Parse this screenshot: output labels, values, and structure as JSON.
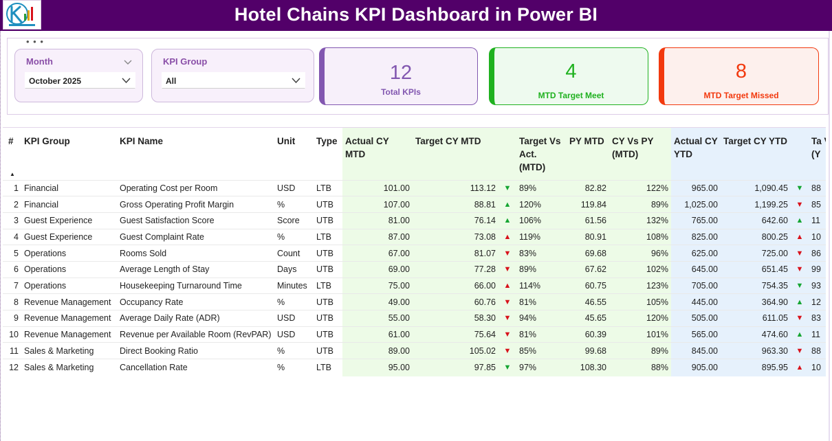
{
  "header": {
    "title": "Hotel Chains KPI Dashboard in Power BI"
  },
  "filters": {
    "month": {
      "label": "Month",
      "value": "October 2025"
    },
    "kpi_group": {
      "label": "KPI Group",
      "value": "All"
    }
  },
  "cards": {
    "total": {
      "value": "12",
      "label": "Total KPIs"
    },
    "met": {
      "value": "4",
      "label": "MTD Target Meet"
    },
    "missed": {
      "value": "8",
      "label": "MTD Target Missed"
    }
  },
  "table": {
    "columns": [
      "#",
      "KPI Group",
      "KPI Name",
      "Unit",
      "Type",
      "Actual CY MTD",
      "Target CY MTD",
      "",
      "Target Vs Act. (MTD)",
      "PY MTD",
      "CY Vs PY (MTD)",
      "Actual CY YTD",
      "Target CY YTD",
      "",
      "Ta Vs (Y"
    ],
    "rows": [
      {
        "n": "1",
        "group": "Financial",
        "name": "Operating Cost per Room",
        "unit": "USD",
        "type": "LTB",
        "act_mtd": "101.00",
        "tgt_mtd": "113.12",
        "mtd_icon": "▼",
        "mtd_dir": "up",
        "tva_mtd": "89%",
        "py_mtd": "82.82",
        "cy_py": "122%",
        "act_ytd": "965.00",
        "tgt_ytd": "1,090.45",
        "ytd_icon": "▼",
        "ytd_dir": "up",
        "tva_ytd": "88"
      },
      {
        "n": "2",
        "group": "Financial",
        "name": "Gross Operating Profit Margin",
        "unit": "%",
        "type": "UTB",
        "act_mtd": "107.00",
        "tgt_mtd": "88.81",
        "mtd_icon": "▲",
        "mtd_dir": "up",
        "tva_mtd": "120%",
        "py_mtd": "119.84",
        "cy_py": "89%",
        "act_ytd": "1,025.00",
        "tgt_ytd": "1,199.25",
        "ytd_icon": "▼",
        "ytd_dir": "down",
        "tva_ytd": "85"
      },
      {
        "n": "3",
        "group": "Guest Experience",
        "name": "Guest Satisfaction Score",
        "unit": "Score",
        "type": "UTB",
        "act_mtd": "81.00",
        "tgt_mtd": "76.14",
        "mtd_icon": "▲",
        "mtd_dir": "up",
        "tva_mtd": "106%",
        "py_mtd": "61.56",
        "cy_py": "132%",
        "act_ytd": "765.00",
        "tgt_ytd": "642.60",
        "ytd_icon": "▲",
        "ytd_dir": "up",
        "tva_ytd": "11"
      },
      {
        "n": "4",
        "group": "Guest Experience",
        "name": "Guest Complaint Rate",
        "unit": "%",
        "type": "LTB",
        "act_mtd": "87.00",
        "tgt_mtd": "73.08",
        "mtd_icon": "▲",
        "mtd_dir": "down",
        "tva_mtd": "119%",
        "py_mtd": "80.91",
        "cy_py": "108%",
        "act_ytd": "825.00",
        "tgt_ytd": "800.25",
        "ytd_icon": "▲",
        "ytd_dir": "down",
        "tva_ytd": "10"
      },
      {
        "n": "5",
        "group": "Operations",
        "name": "Rooms Sold",
        "unit": "Count",
        "type": "UTB",
        "act_mtd": "67.00",
        "tgt_mtd": "81.07",
        "mtd_icon": "▼",
        "mtd_dir": "down",
        "tva_mtd": "83%",
        "py_mtd": "69.68",
        "cy_py": "96%",
        "act_ytd": "625.00",
        "tgt_ytd": "725.00",
        "ytd_icon": "▼",
        "ytd_dir": "down",
        "tva_ytd": "86"
      },
      {
        "n": "6",
        "group": "Operations",
        "name": "Average Length of Stay",
        "unit": "Days",
        "type": "UTB",
        "act_mtd": "69.00",
        "tgt_mtd": "77.28",
        "mtd_icon": "▼",
        "mtd_dir": "down",
        "tva_mtd": "89%",
        "py_mtd": "67.62",
        "cy_py": "102%",
        "act_ytd": "645.00",
        "tgt_ytd": "651.45",
        "ytd_icon": "▼",
        "ytd_dir": "down",
        "tva_ytd": "99"
      },
      {
        "n": "7",
        "group": "Operations",
        "name": "Housekeeping Turnaround Time",
        "unit": "Minutes",
        "type": "LTB",
        "act_mtd": "75.00",
        "tgt_mtd": "66.00",
        "mtd_icon": "▲",
        "mtd_dir": "down",
        "tva_mtd": "114%",
        "py_mtd": "60.75",
        "cy_py": "123%",
        "act_ytd": "705.00",
        "tgt_ytd": "754.35",
        "ytd_icon": "▼",
        "ytd_dir": "up",
        "tva_ytd": "93"
      },
      {
        "n": "8",
        "group": "Revenue Management",
        "name": "Occupancy Rate",
        "unit": "%",
        "type": "UTB",
        "act_mtd": "49.00",
        "tgt_mtd": "60.76",
        "mtd_icon": "▼",
        "mtd_dir": "down",
        "tva_mtd": "81%",
        "py_mtd": "46.55",
        "cy_py": "105%",
        "act_ytd": "445.00",
        "tgt_ytd": "364.90",
        "ytd_icon": "▲",
        "ytd_dir": "up",
        "tva_ytd": "12"
      },
      {
        "n": "9",
        "group": "Revenue Management",
        "name": "Average Daily Rate (ADR)",
        "unit": "USD",
        "type": "UTB",
        "act_mtd": "55.00",
        "tgt_mtd": "58.30",
        "mtd_icon": "▼",
        "mtd_dir": "down",
        "tva_mtd": "94%",
        "py_mtd": "45.65",
        "cy_py": "120%",
        "act_ytd": "505.00",
        "tgt_ytd": "611.05",
        "ytd_icon": "▼",
        "ytd_dir": "down",
        "tva_ytd": "83"
      },
      {
        "n": "10",
        "group": "Revenue Management",
        "name": "Revenue per Available Room (RevPAR)",
        "unit": "USD",
        "type": "UTB",
        "act_mtd": "61.00",
        "tgt_mtd": "75.64",
        "mtd_icon": "▼",
        "mtd_dir": "down",
        "tva_mtd": "81%",
        "py_mtd": "60.39",
        "cy_py": "101%",
        "act_ytd": "565.00",
        "tgt_ytd": "474.60",
        "ytd_icon": "▲",
        "ytd_dir": "up",
        "tva_ytd": "11"
      },
      {
        "n": "11",
        "group": "Sales & Marketing",
        "name": "Direct Booking Ratio",
        "unit": "%",
        "type": "UTB",
        "act_mtd": "89.00",
        "tgt_mtd": "105.02",
        "mtd_icon": "▼",
        "mtd_dir": "down",
        "tva_mtd": "85%",
        "py_mtd": "99.68",
        "cy_py": "89%",
        "act_ytd": "845.00",
        "tgt_ytd": "963.30",
        "ytd_icon": "▼",
        "ytd_dir": "down",
        "tva_ytd": "88"
      },
      {
        "n": "12",
        "group": "Sales & Marketing",
        "name": "Cancellation Rate",
        "unit": "%",
        "type": "LTB",
        "act_mtd": "95.00",
        "tgt_mtd": "97.85",
        "mtd_icon": "▼",
        "mtd_dir": "up",
        "tva_mtd": "97%",
        "py_mtd": "108.30",
        "cy_py": "88%",
        "act_ytd": "905.00",
        "tgt_ytd": "895.95",
        "ytd_icon": "▲",
        "ytd_dir": "down",
        "tva_ytd": "10"
      }
    ]
  },
  "colors": {
    "title_bar": "#520069",
    "total_card": "#8257b0",
    "met_card": "#1fb11f",
    "missed_card": "#f2390e",
    "mtd_band": "#edfbe7",
    "ytd_band": "#e6f1fc",
    "up_arrow": "#15a532",
    "down_arrow": "#d8121b"
  }
}
